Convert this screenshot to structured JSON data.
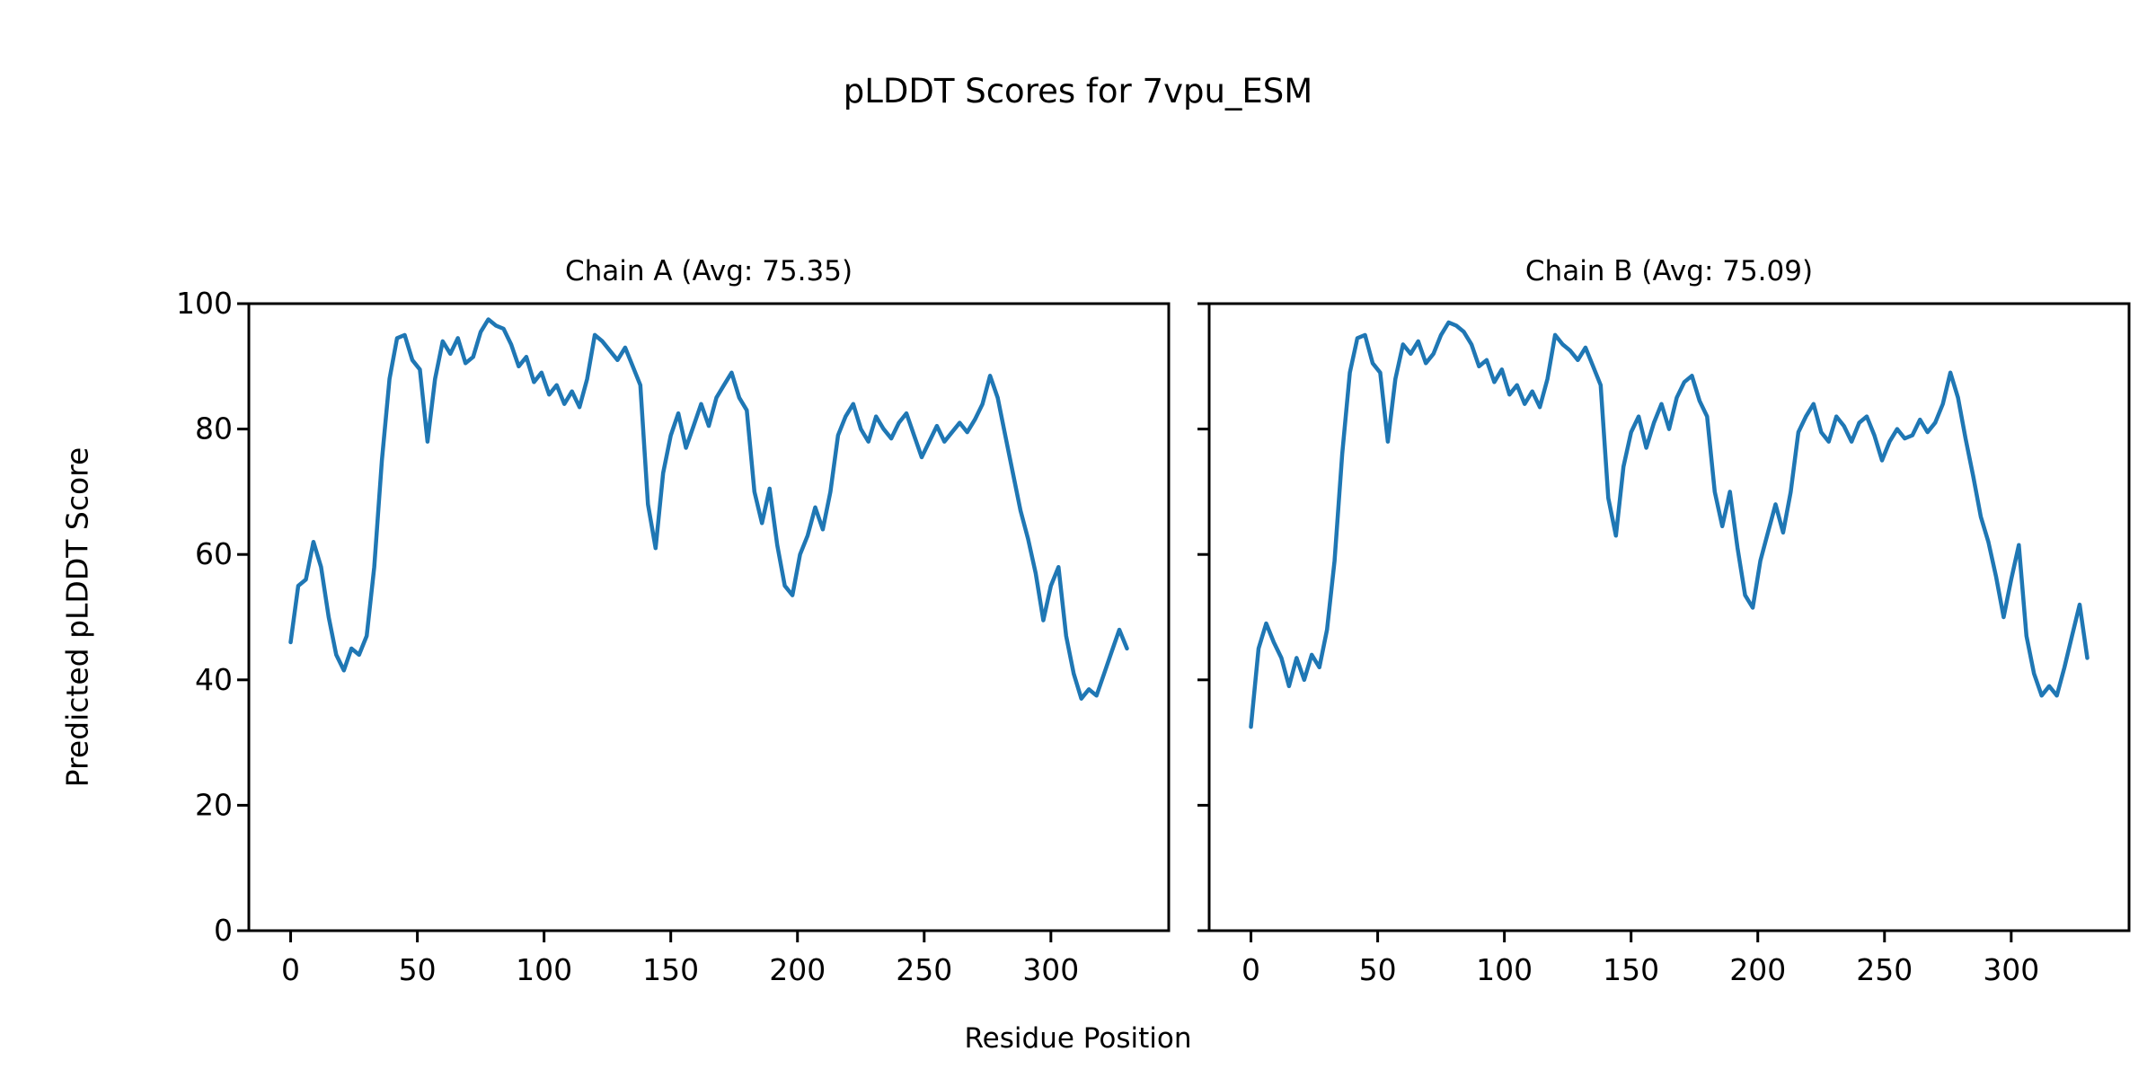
{
  "figure": {
    "title": "pLDDT Scores for 7vpu_ESM",
    "xlabel": "Residue Position",
    "ylabel": "Predicted pLDDT Score",
    "line_color": "#1f77b4",
    "axis_color": "#000000",
    "background": "#ffffff"
  },
  "chart_data": [
    {
      "type": "line",
      "title": "Chain A (Avg: 75.35)",
      "chain": "A",
      "avg": 75.35,
      "xlabel": "Residue Position",
      "ylabel": "Predicted pLDDT Score",
      "xlim": [
        -16.5,
        346.5
      ],
      "ylim": [
        0,
        100
      ],
      "xticks": [
        0,
        50,
        100,
        150,
        200,
        250,
        300
      ],
      "yticks": [
        0,
        20,
        40,
        60,
        80,
        100
      ],
      "show_ytick_labels": true,
      "grid": false,
      "legend": "none",
      "x_start": 0,
      "x_step": 3,
      "values": [
        46,
        55,
        56,
        62,
        58,
        50,
        44,
        41.5,
        45,
        44,
        47,
        58,
        75,
        88,
        94.5,
        95,
        91,
        89.5,
        78,
        88,
        94,
        92,
        94.5,
        90.5,
        91.5,
        95.5,
        97.5,
        96.5,
        96,
        93.5,
        90,
        91.5,
        87.5,
        89,
        85.5,
        87,
        84,
        86,
        83.5,
        88,
        95,
        94,
        92.5,
        91,
        93,
        90,
        87,
        68,
        61,
        73,
        79,
        82.5,
        77,
        80.5,
        84,
        80.5,
        85,
        87,
        89,
        85,
        83,
        70,
        65,
        70.5,
        61.5,
        55,
        53.5,
        60,
        63,
        67.5,
        64,
        70,
        79,
        82,
        84,
        80,
        78,
        82,
        80,
        78.5,
        81,
        82.5,
        79,
        75.5,
        78,
        80.5,
        78,
        79.5,
        81,
        79.5,
        81.5,
        84,
        88.5,
        85,
        79,
        73,
        67,
        62.5,
        57,
        49.5,
        55,
        58,
        47,
        41,
        37,
        38.5,
        37.5,
        41,
        44.5,
        48,
        45
      ]
    },
    {
      "type": "line",
      "title": "Chain B (Avg: 75.09)",
      "chain": "B",
      "avg": 75.09,
      "xlabel": "Residue Position",
      "ylabel": "Predicted pLDDT Score",
      "xlim": [
        -16.5,
        346.5
      ],
      "ylim": [
        0,
        100
      ],
      "xticks": [
        0,
        50,
        100,
        150,
        200,
        250,
        300
      ],
      "yticks": [
        0,
        20,
        40,
        60,
        80,
        100
      ],
      "show_ytick_labels": false,
      "grid": false,
      "legend": "none",
      "x_start": 0,
      "x_step": 3,
      "values": [
        32.5,
        45,
        49,
        46,
        43.5,
        39,
        43.5,
        40,
        44,
        42,
        48,
        59,
        76,
        89,
        94.5,
        95,
        90.5,
        89,
        78,
        88,
        93.5,
        92,
        94,
        90.5,
        92,
        95,
        97,
        96.5,
        95.5,
        93.5,
        90,
        91,
        87.5,
        89.5,
        85.5,
        87,
        84,
        86,
        83.5,
        88,
        95,
        93.5,
        92.5,
        91,
        93,
        90,
        87,
        69,
        63,
        74,
        79.5,
        82,
        77,
        81,
        84,
        80,
        85,
        87.5,
        88.5,
        84.5,
        82,
        70,
        64.5,
        70,
        61,
        53.5,
        51.5,
        59,
        63.5,
        68,
        63.5,
        70,
        79.5,
        82,
        84,
        79.5,
        78,
        82,
        80.5,
        78,
        81,
        82,
        79,
        75,
        78,
        80,
        78.5,
        79,
        81.5,
        79.5,
        81,
        84,
        89,
        85,
        78.5,
        72.5,
        66,
        62,
        56.5,
        50,
        56,
        61.5,
        47,
        41,
        37.5,
        39,
        37.5,
        42,
        47,
        52,
        43.5
      ]
    }
  ]
}
